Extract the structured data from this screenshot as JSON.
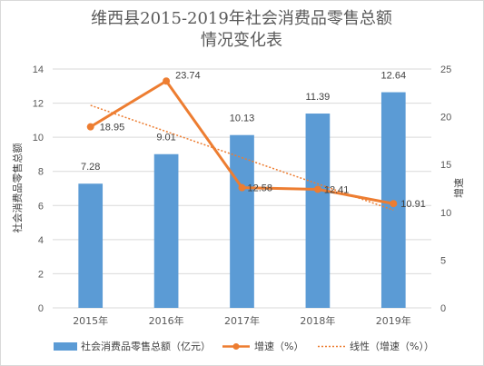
{
  "chart_data": {
    "type": "bar",
    "title_lines": [
      "维西县2015-2019年社会消费品零售总额",
      "情况变化表"
    ],
    "categories": [
      "2015年",
      "2016年",
      "2017年",
      "2018年",
      "2019年"
    ],
    "series": [
      {
        "name": "社会消费品零售总额（亿元）",
        "type": "bar",
        "axis": "left",
        "values": [
          7.28,
          9.01,
          10.13,
          11.39,
          12.64
        ],
        "labels": [
          "7.28",
          "9.01",
          "10.13",
          "11.39",
          "12.64"
        ],
        "color": "#5b9bd5"
      },
      {
        "name": "增速（%）",
        "type": "line",
        "axis": "right",
        "values": [
          18.95,
          23.74,
          12.58,
          12.41,
          10.91
        ],
        "labels": [
          "18.95",
          "23.74",
          "12.58",
          "12.41",
          "10.91"
        ],
        "color": "#ed7d31"
      },
      {
        "name": "线性（增速（%））",
        "type": "trendline",
        "axis": "right",
        "of": "增速（%）",
        "method": "linear",
        "color": "#ed7d31"
      }
    ],
    "y_left": {
      "label": "社会消费品零售总额",
      "range": [
        0,
        14
      ],
      "ticks": [
        0,
        2,
        4,
        6,
        8,
        10,
        12,
        14
      ],
      "tick_labels": [
        "0",
        "2",
        "4",
        "6",
        "8",
        "10",
        "12",
        "14"
      ]
    },
    "y_right": {
      "label": "增速",
      "range": [
        0,
        25
      ],
      "ticks": [
        0,
        5,
        10,
        15,
        20,
        25
      ],
      "tick_labels": [
        "0",
        "5",
        "10",
        "15",
        "20",
        "25"
      ]
    },
    "grid": true,
    "legend": "bottom"
  }
}
